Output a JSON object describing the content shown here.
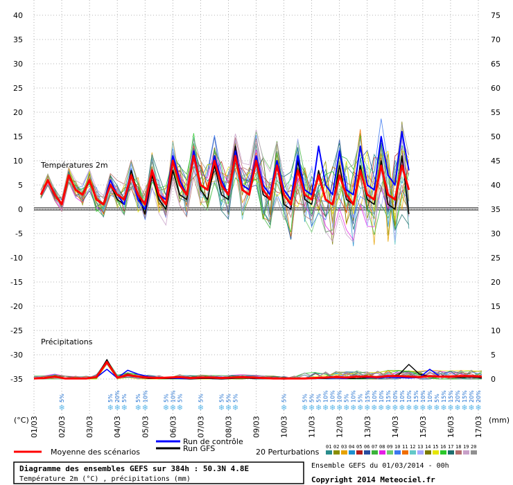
{
  "chart_data": {
    "type": "line",
    "title": "Diagramme des ensembles GEFS sur 384h : 50.3N 4.8E",
    "subtitle": "Température 2m (°C) , précipitations (mm)",
    "ensemble_label": "Ensemble GEFS du 01/03/2014 - 00h",
    "copyright": "Copyright 2014 Meteociel.fr",
    "panel_temp_label": "Températures 2m",
    "panel_precip_label": "Précipitations",
    "left_axis_unit": "(°C)",
    "right_axis_unit": "(mm)",
    "ylim": [
      -35,
      40
    ],
    "yticks": [
      40,
      35,
      30,
      25,
      20,
      15,
      10,
      5,
      0,
      -5,
      -10,
      -15,
      -20,
      -25,
      -30,
      -35
    ],
    "right_ticks": [
      75,
      70,
      65,
      60,
      55,
      50,
      45,
      40,
      35,
      30,
      25,
      20,
      15,
      10,
      5,
      0
    ],
    "x_labels": [
      "01/03",
      "02/03",
      "03/03",
      "04/03",
      "05/03",
      "06/03",
      "07/03",
      "08/03",
      "09/03",
      "10/03",
      "11/03",
      "12/03",
      "13/03",
      "14/03",
      "15/03",
      "16/03",
      "17/03"
    ],
    "legend": {
      "mean": "Moyenne des scénarios",
      "control": "Run de contrôle",
      "gfs": "Run GFS",
      "perturbations": "20 Perturbations",
      "colors": {
        "mean": "#ff0000",
        "control": "#0000ff",
        "gfs": "#000000"
      },
      "perturbation_ids": [
        "01",
        "02",
        "03",
        "04",
        "05",
        "06",
        "07",
        "08",
        "09",
        "10",
        "11",
        "12",
        "13",
        "14",
        "15",
        "16",
        "17",
        "18",
        "19",
        "20"
      ],
      "perturbation_colors": [
        "#2a8c8c",
        "#8a8f00",
        "#e6a200",
        "#1e90d0",
        "#b41e1e",
        "#2a4da0",
        "#3cb43c",
        "#e61ee6",
        "#6ecc6e",
        "#3c78f0",
        "#f06e00",
        "#64c8c8",
        "#a8a8ff",
        "#7a7a00",
        "#e6e600",
        "#2ac82a",
        "#1e6e6e",
        "#b46e6e",
        "#c8a0c8",
        "#909090"
      ]
    },
    "series": [
      {
        "name": "Moyenne des scénarios",
        "values": [
          3,
          6,
          3,
          1,
          7,
          4,
          3,
          6,
          2,
          1,
          5,
          3,
          2,
          7,
          3,
          1,
          8,
          3,
          1,
          10,
          5,
          3,
          11,
          5,
          4,
          10,
          5,
          3,
          11,
          4,
          3,
          10,
          4,
          2,
          9,
          3,
          1,
          8,
          3,
          2,
          7,
          2,
          1,
          7,
          3,
          1,
          8,
          3,
          2,
          9,
          3,
          2,
          9,
          4
        ]
      },
      {
        "name": "Run de contrôle",
        "values": [
          3,
          6,
          3,
          1,
          7,
          4,
          3,
          6,
          2,
          1,
          6,
          3,
          1,
          7,
          2,
          0,
          8,
          3,
          2,
          11,
          6,
          3,
          12,
          5,
          4,
          11,
          6,
          3,
          12,
          5,
          4,
          11,
          5,
          3,
          10,
          4,
          2,
          11,
          4,
          3,
          13,
          5,
          3,
          12,
          4,
          3,
          13,
          5,
          4,
          15,
          7,
          5,
          16,
          8
        ]
      },
      {
        "name": "Run GFS",
        "values": [
          3,
          6,
          3,
          1,
          7,
          4,
          3,
          6,
          2,
          1,
          5,
          2,
          1,
          8,
          3,
          -1,
          7,
          2,
          0,
          8,
          3,
          2,
          12,
          4,
          2,
          9,
          3,
          2,
          13,
          4,
          3,
          11,
          3,
          2,
          9,
          1,
          0,
          10,
          2,
          1,
          8,
          2,
          1,
          9,
          2,
          1,
          9,
          2,
          1,
          10,
          1,
          0,
          11,
          -1
        ]
      }
    ],
    "precip": {
      "mean": [
        0.1,
        0.2,
        0.5,
        0.1,
        0.1,
        0.1,
        0.4,
        3.5,
        0.3,
        0.8,
        0.5,
        0.3,
        0.2,
        0.3,
        0.4,
        0.2,
        0.3,
        0.3,
        0.2,
        0.3,
        0.4,
        0.3,
        0.2,
        0.1,
        0.1,
        0.1,
        0.1,
        0.2,
        0.3,
        0.4,
        0.3,
        0.5,
        0.5,
        0.4,
        0.6,
        0.6,
        0.5,
        0.4,
        0.6,
        0.5,
        0.5,
        0.6,
        0.6,
        0.5
      ],
      "control": [
        0.1,
        0.2,
        0.4,
        0.1,
        0.1,
        0.1,
        0.3,
        2.0,
        0.2,
        1.8,
        1.0,
        0.5,
        0.2,
        0.2,
        0.1,
        0.1,
        0.2,
        0.2,
        0.1,
        0.2,
        0.3,
        0.2,
        0.1,
        0.1,
        0.1,
        0.1,
        0.1,
        0.1,
        0.2,
        0.2,
        0.1,
        0.6,
        0.3,
        0.2,
        0.4,
        0.3,
        0.2,
        0.3,
        2.0,
        0.5,
        0.4,
        0.6,
        0.5,
        0.4
      ],
      "gfs": [
        0.1,
        0.2,
        0.5,
        0.1,
        0.1,
        0.1,
        0.4,
        4.0,
        0.2,
        1.0,
        0.4,
        0.1,
        0.1,
        0.1,
        0.1,
        0.0,
        0.1,
        0.1,
        0.0,
        0.1,
        0.2,
        0.1,
        0.1,
        0.1,
        0.0,
        0.1,
        0.1,
        0.1,
        0.1,
        0.2,
        0.1,
        0.1,
        0.2,
        0.3,
        0.5,
        0.8,
        3.0,
        1.0,
        0.6,
        0.5,
        0.4,
        0.3,
        0.4,
        0.2
      ]
    },
    "snow_labels": [
      {
        "day": 2.0,
        "labels": [
          "5%"
        ]
      },
      {
        "day": 3.75,
        "labels": [
          "5%"
        ]
      },
      {
        "day": 4.0,
        "labels": [
          "20%"
        ]
      },
      {
        "day": 4.25,
        "labels": [
          "5%"
        ]
      },
      {
        "day": 4.75,
        "labels": [
          "5%"
        ]
      },
      {
        "day": 5.0,
        "labels": [
          "10%"
        ]
      },
      {
        "day": 5.75,
        "labels": [
          "5%"
        ]
      },
      {
        "day": 6.0,
        "labels": [
          "10%"
        ]
      },
      {
        "day": 6.25,
        "labels": [
          "5%"
        ]
      },
      {
        "day": 7.0,
        "labels": [
          "5%"
        ]
      },
      {
        "day": 7.75,
        "labels": [
          "5%"
        ]
      },
      {
        "day": 8.0,
        "labels": [
          "5%"
        ]
      },
      {
        "day": 8.25,
        "labels": [
          "5%"
        ]
      },
      {
        "day": 10.0,
        "labels": [
          "5%"
        ]
      },
      {
        "day": 10.75,
        "labels": [
          "5%"
        ]
      },
      {
        "day": 11.0,
        "labels": [
          "5%"
        ]
      },
      {
        "day": 11.25,
        "labels": [
          "5%"
        ]
      },
      {
        "day": 11.5,
        "labels": [
          "10%"
        ]
      },
      {
        "day": 11.75,
        "labels": [
          "10%"
        ]
      },
      {
        "day": 12.0,
        "labels": [
          "10%"
        ]
      },
      {
        "day": 12.25,
        "labels": [
          "5%"
        ]
      },
      {
        "day": 12.5,
        "labels": [
          "10%"
        ]
      },
      {
        "day": 12.75,
        "labels": [
          "5%"
        ]
      },
      {
        "day": 13.0,
        "labels": [
          "15%"
        ]
      },
      {
        "day": 13.25,
        "labels": [
          "10%"
        ]
      },
      {
        "day": 13.5,
        "labels": [
          "10%"
        ]
      },
      {
        "day": 13.75,
        "labels": [
          "15%"
        ]
      },
      {
        "day": 14.0,
        "labels": [
          "10%"
        ]
      },
      {
        "day": 14.25,
        "labels": [
          "10%"
        ]
      },
      {
        "day": 14.5,
        "labels": [
          "10%"
        ]
      },
      {
        "day": 14.75,
        "labels": [
          "15%"
        ]
      },
      {
        "day": 15.0,
        "labels": [
          "10%"
        ]
      },
      {
        "day": 15.25,
        "labels": [
          "10%"
        ]
      },
      {
        "day": 15.5,
        "labels": [
          "5%"
        ]
      },
      {
        "day": 15.75,
        "labels": [
          "15%"
        ]
      },
      {
        "day": 16.0,
        "labels": [
          "15%"
        ]
      },
      {
        "day": 16.25,
        "labels": [
          "20%"
        ]
      },
      {
        "day": 16.5,
        "labels": [
          "15%"
        ]
      },
      {
        "day": 16.75,
        "labels": [
          "20%"
        ]
      },
      {
        "day": 17.0,
        "labels": [
          "20%"
        ]
      }
    ]
  }
}
